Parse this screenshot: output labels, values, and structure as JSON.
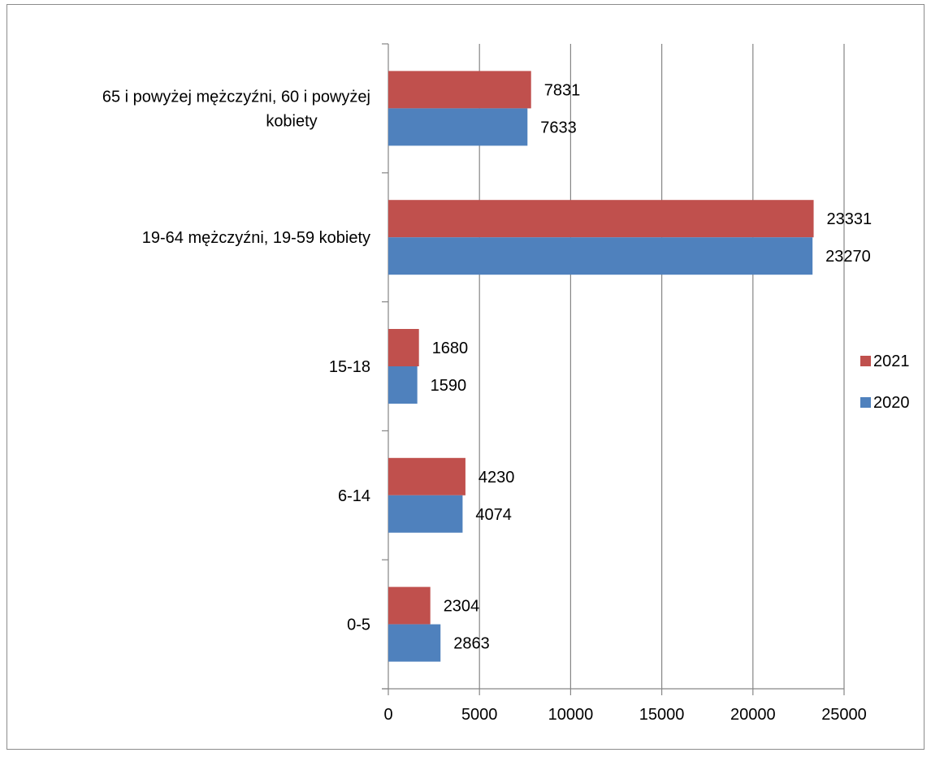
{
  "chart_data": {
    "type": "bar",
    "orientation": "horizontal",
    "title": "",
    "xlabel": "",
    "ylabel": "",
    "categories": [
      [
        "65 i powyżej mężczyźni, 60 i powyżej",
        "kobiety"
      ],
      [
        "19-64 mężczyźni, 19-59 kobiety"
      ],
      [
        "15-18"
      ],
      [
        "6-14"
      ],
      [
        "0-5"
      ]
    ],
    "series": [
      {
        "name": "2021",
        "color": "#c0504d",
        "values": [
          7831,
          23331,
          1680,
          4230,
          2304
        ]
      },
      {
        "name": "2020",
        "color": "#4f81bd",
        "values": [
          7633,
          23270,
          1590,
          4074,
          2863
        ]
      }
    ],
    "xlim": [
      0,
      25000
    ],
    "xticks": [
      0,
      5000,
      10000,
      15000,
      20000,
      25000
    ],
    "grid": "vertical",
    "legend_position": "right",
    "data_labels": true
  }
}
